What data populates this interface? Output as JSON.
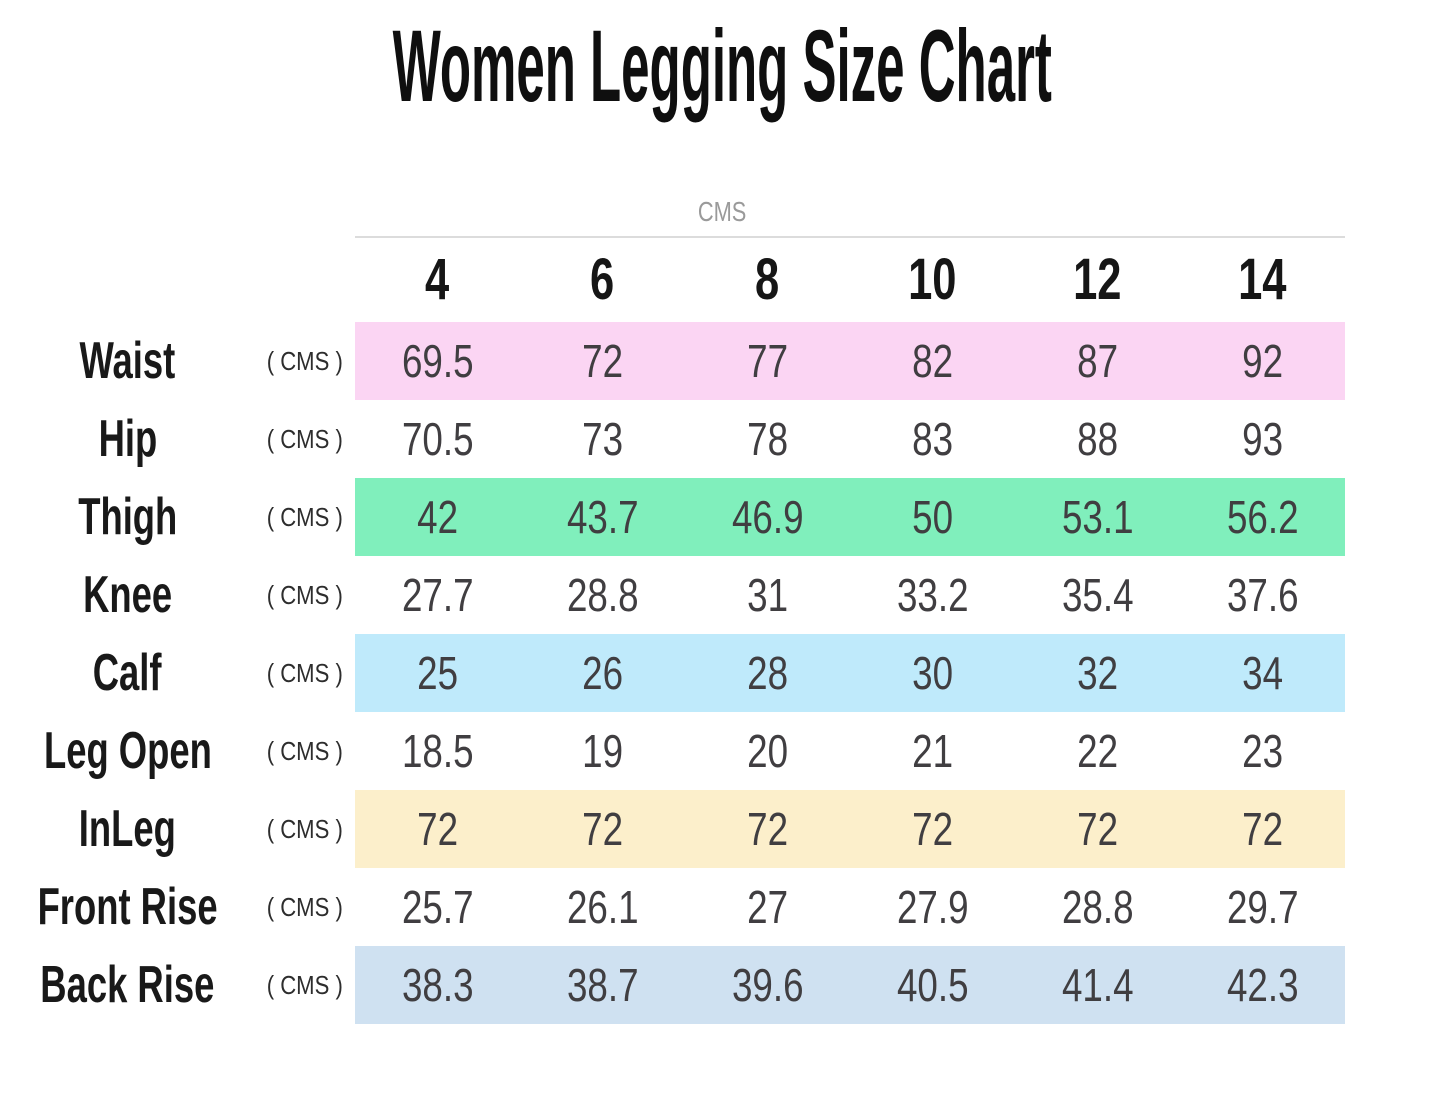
{
  "page": {
    "title": "Women Legging Size Chart",
    "unit_header": "CMS"
  },
  "table": {
    "sizes": [
      "4",
      "6",
      "8",
      "10",
      "12",
      "14"
    ],
    "rows": [
      {
        "label": "Waist",
        "unit": "( CMS )",
        "band_color": "#fbd5f3",
        "values": [
          "69.5",
          "72",
          "77",
          "82",
          "87",
          "92"
        ]
      },
      {
        "label": "Hip",
        "unit": "( CMS )",
        "band_color": "transparent",
        "values": [
          "70.5",
          "73",
          "78",
          "83",
          "88",
          "93"
        ]
      },
      {
        "label": "Thigh",
        "unit": "( CMS )",
        "band_color": "#80efbc",
        "values": [
          "42",
          "43.7",
          "46.9",
          "50",
          "53.1",
          "56.2"
        ]
      },
      {
        "label": "Knee",
        "unit": "( CMS )",
        "band_color": "transparent",
        "values": [
          "27.7",
          "28.8",
          "31",
          "33.2",
          "35.4",
          "37.6"
        ]
      },
      {
        "label": "Calf",
        "unit": "( CMS )",
        "band_color": "#bfeafb",
        "values": [
          "25",
          "26",
          "28",
          "30",
          "32",
          "34"
        ]
      },
      {
        "label": "Leg Open",
        "unit": "( CMS )",
        "band_color": "transparent",
        "values": [
          "18.5",
          "19",
          "20",
          "21",
          "22",
          "23"
        ]
      },
      {
        "label": "InLeg",
        "unit": "( CMS )",
        "band_color": "#fcefcb",
        "values": [
          "72",
          "72",
          "72",
          "72",
          "72",
          "72"
        ]
      },
      {
        "label": "Front Rise",
        "unit": "( CMS )",
        "band_color": "transparent",
        "values": [
          "25.7",
          "26.1",
          "27",
          "27.9",
          "28.8",
          "29.7"
        ]
      },
      {
        "label": "Back Rise",
        "unit": "( CMS )",
        "band_color": "#cfe1f1",
        "values": [
          "38.3",
          "38.7",
          "39.6",
          "40.5",
          "41.4",
          "42.3"
        ]
      }
    ]
  },
  "colors": {
    "background": "#ffffff",
    "title_text": "#0f0f0f",
    "unit_header_text": "#9a9a9a",
    "divider": "#dcdcdc",
    "label_text": "#191919",
    "value_text": "#403e41",
    "band_pink": "#fbd5f3",
    "band_mint_green": "#80efbc",
    "band_light_cyan": "#bfeafb",
    "band_cream": "#fcefcb",
    "band_steel_blue": "#cfe1f1"
  },
  "chart_data": {
    "type": "table",
    "title": "Women Legging Size Chart",
    "unit": "CMS",
    "columns": [
      4,
      6,
      8,
      10,
      12,
      14
    ],
    "rows": [
      {
        "measurement": "Waist",
        "values": [
          69.5,
          72,
          77,
          82,
          87,
          92
        ]
      },
      {
        "measurement": "Hip",
        "values": [
          70.5,
          73,
          78,
          83,
          88,
          93
        ]
      },
      {
        "measurement": "Thigh",
        "values": [
          42,
          43.7,
          46.9,
          50,
          53.1,
          56.2
        ]
      },
      {
        "measurement": "Knee",
        "values": [
          27.7,
          28.8,
          31,
          33.2,
          35.4,
          37.6
        ]
      },
      {
        "measurement": "Calf",
        "values": [
          25,
          26,
          28,
          30,
          32,
          34
        ]
      },
      {
        "measurement": "Leg Open",
        "values": [
          18.5,
          19,
          20,
          21,
          22,
          23
        ]
      },
      {
        "measurement": "InLeg",
        "values": [
          72,
          72,
          72,
          72,
          72,
          72
        ]
      },
      {
        "measurement": "Front Rise",
        "values": [
          25.7,
          26.1,
          27,
          27.9,
          28.8,
          29.7
        ]
      },
      {
        "measurement": "Back Rise",
        "values": [
          38.3,
          38.7,
          39.6,
          40.5,
          41.4,
          42.3
        ]
      }
    ]
  }
}
